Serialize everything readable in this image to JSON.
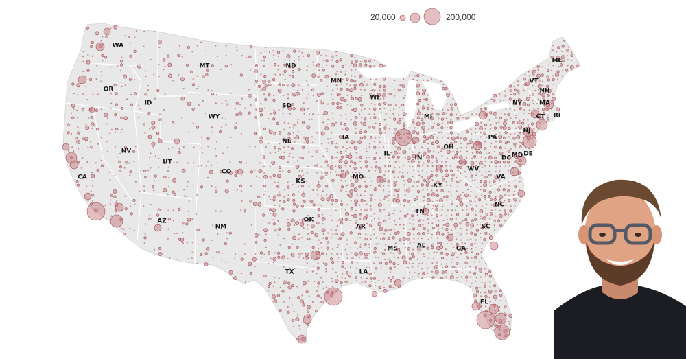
{
  "legend": {
    "small_label": "20,000",
    "large_label": "200,000"
  },
  "colors": {
    "land": "#e8e8e8",
    "border": "#ffffff",
    "bubble_fill": "#c37076",
    "bubble_stroke": "#9e4a52"
  },
  "states": [
    {
      "abbr": "WA"
    },
    {
      "abbr": "OR"
    },
    {
      "abbr": "CA"
    },
    {
      "abbr": "NV"
    },
    {
      "abbr": "ID"
    },
    {
      "abbr": "MT"
    },
    {
      "abbr": "WY"
    },
    {
      "abbr": "UT"
    },
    {
      "abbr": "AZ"
    },
    {
      "abbr": "CO"
    },
    {
      "abbr": "NM"
    },
    {
      "abbr": "ND"
    },
    {
      "abbr": "SD"
    },
    {
      "abbr": "NE"
    },
    {
      "abbr": "KS"
    },
    {
      "abbr": "OK"
    },
    {
      "abbr": "TX"
    },
    {
      "abbr": "MN"
    },
    {
      "abbr": "IA"
    },
    {
      "abbr": "MO"
    },
    {
      "abbr": "AR"
    },
    {
      "abbr": "LA"
    },
    {
      "abbr": "WI"
    },
    {
      "abbr": "IL"
    },
    {
      "abbr": "MI"
    },
    {
      "abbr": "IN"
    },
    {
      "abbr": "OH"
    },
    {
      "abbr": "KY"
    },
    {
      "abbr": "TN"
    },
    {
      "abbr": "MS"
    },
    {
      "abbr": "AL"
    },
    {
      "abbr": "GA"
    },
    {
      "abbr": "FL"
    },
    {
      "abbr": "SC"
    },
    {
      "abbr": "NC"
    },
    {
      "abbr": "VA"
    },
    {
      "abbr": "WV"
    },
    {
      "abbr": "PA"
    },
    {
      "abbr": "MD"
    },
    {
      "abbr": "DE"
    },
    {
      "abbr": "DC"
    },
    {
      "abbr": "NJ"
    },
    {
      "abbr": "NY"
    },
    {
      "abbr": "CT"
    },
    {
      "abbr": "RI"
    },
    {
      "abbr": "MA"
    },
    {
      "abbr": "VT"
    },
    {
      "abbr": "NH"
    },
    {
      "abbr": "ME"
    }
  ],
  "portrait": {
    "icon": "person-photo"
  }
}
